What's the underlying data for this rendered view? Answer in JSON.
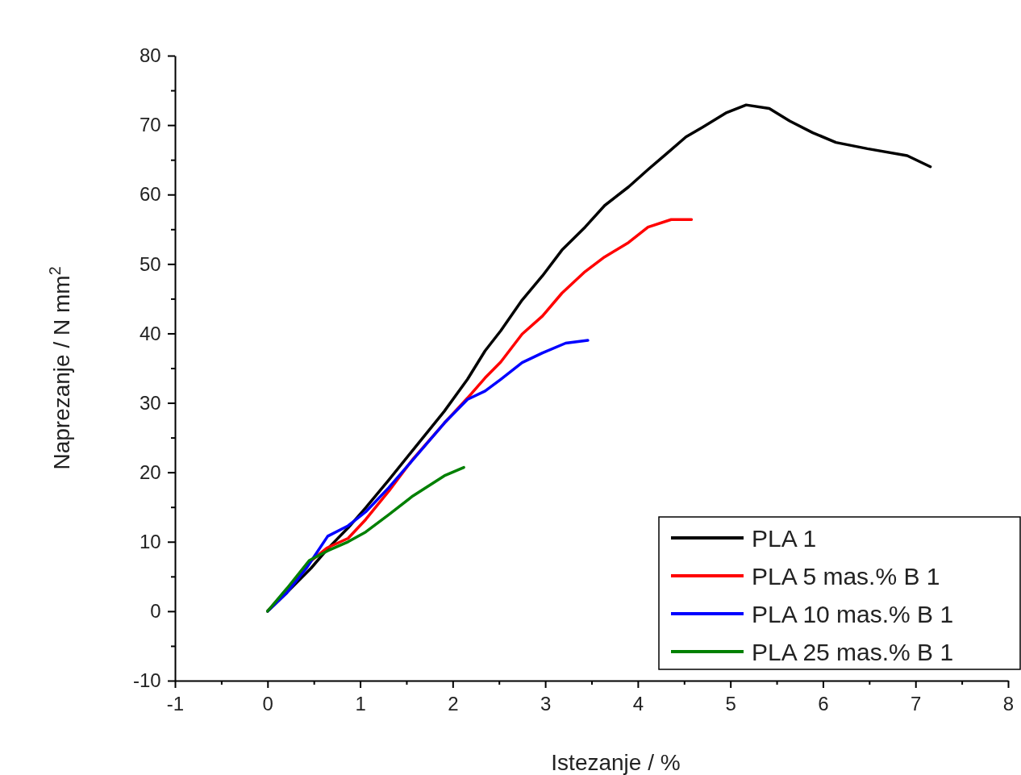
{
  "chart_data": {
    "type": "line",
    "xlabel": "Istezanje / %",
    "ylabel": "Naprezanje / N mm$^{2}$",
    "xlim": [
      -1,
      8
    ],
    "ylim": [
      -10,
      80
    ],
    "xticks": [
      -1,
      {
        "value": -0.5,
        "label": null
      },
      0,
      {
        "value": 0.5,
        "label": null
      },
      1,
      {
        "value": 1.5,
        "label": null
      },
      2,
      {
        "value": 2.5,
        "label": null
      },
      3,
      {
        "value": 3.5,
        "label": null
      },
      4,
      {
        "value": 4.5,
        "label": null
      },
      5,
      {
        "value": 5.5,
        "label": null
      },
      6,
      {
        "value": 6.5,
        "label": null
      },
      7,
      {
        "value": 7.5,
        "label": null
      },
      8
    ],
    "yticks": [
      -10,
      {
        "value": -5,
        "label": null
      },
      0,
      {
        "value": 5,
        "label": null
      },
      10,
      {
        "value": 15,
        "label": null
      },
      20,
      {
        "value": 25,
        "label": null
      },
      30,
      {
        "value": 35,
        "label": null
      },
      40,
      {
        "value": 45,
        "label": null
      },
      50,
      {
        "value": 55,
        "label": null
      },
      60,
      {
        "value": 65,
        "label": null
      },
      70,
      {
        "value": 75,
        "label": null
      },
      80
    ],
    "grid": false,
    "legend": "bottom right",
    "marker": "none",
    "line_style": "solid",
    "series": [
      {
        "name": "PLA 1",
        "color": "#000000",
        "x": [
          0,
          0.21,
          0.47,
          0.65,
          0.87,
          1.06,
          1.31,
          1.57,
          1.91,
          2.16,
          2.35,
          2.52,
          2.75,
          2.97,
          3.18,
          3.43,
          3.64,
          3.9,
          4.11,
          4.32,
          4.52,
          4.7,
          4.96,
          5.17,
          5.42,
          5.64,
          5.89,
          6.14,
          6.48,
          6.91,
          7.16
        ],
        "values": [
          0,
          2.7,
          6.2,
          9,
          12,
          14.9,
          18.9,
          23.2,
          28.8,
          33.4,
          37.5,
          40.4,
          44.8,
          48.3,
          52,
          55.3,
          58.4,
          61.1,
          63.6,
          66,
          68.3,
          69.7,
          71.8,
          72.9,
          72.4,
          70.6,
          68.9,
          67.5,
          66.6,
          65.6,
          64
        ]
      },
      {
        "name": "PLA 5 mas.% B 1",
        "color": "#ff0000",
        "x": [
          0,
          0.21,
          0.42,
          0.64,
          0.87,
          1.06,
          1.31,
          1.57,
          1.91,
          2.16,
          2.35,
          2.52,
          2.75,
          2.97,
          3.18,
          3.43,
          3.64,
          3.9,
          4.11,
          4.36,
          4.58
        ],
        "values": [
          0,
          3,
          6.7,
          9.1,
          10.5,
          13.2,
          17.3,
          21.9,
          27.1,
          30.7,
          33.6,
          35.9,
          39.9,
          42.5,
          45.8,
          48.9,
          51,
          53.1,
          55.3,
          56.4,
          56.4
        ]
      },
      {
        "name": "PLA 10 mas.% B 1",
        "color": "#0000ff",
        "x": [
          0,
          0.21,
          0.42,
          0.65,
          0.87,
          1.06,
          1.31,
          1.57,
          1.91,
          2.16,
          2.35,
          2.52,
          2.75,
          2.97,
          3.22,
          3.46
        ],
        "values": [
          0,
          2.7,
          6.2,
          10.8,
          12.3,
          14.3,
          17.8,
          21.8,
          27.1,
          30.5,
          31.7,
          33.4,
          35.8,
          37.2,
          38.6,
          39
        ]
      },
      {
        "name": "PLA 25 mas.% B 1",
        "color": "#008000",
        "x": [
          0,
          0.21,
          0.45,
          0.65,
          0.87,
          1.06,
          1.31,
          1.57,
          1.91,
          2.12
        ],
        "values": [
          0,
          3.3,
          7.3,
          8.7,
          10,
          11.4,
          13.9,
          16.6,
          19.5,
          20.7
        ]
      }
    ]
  }
}
